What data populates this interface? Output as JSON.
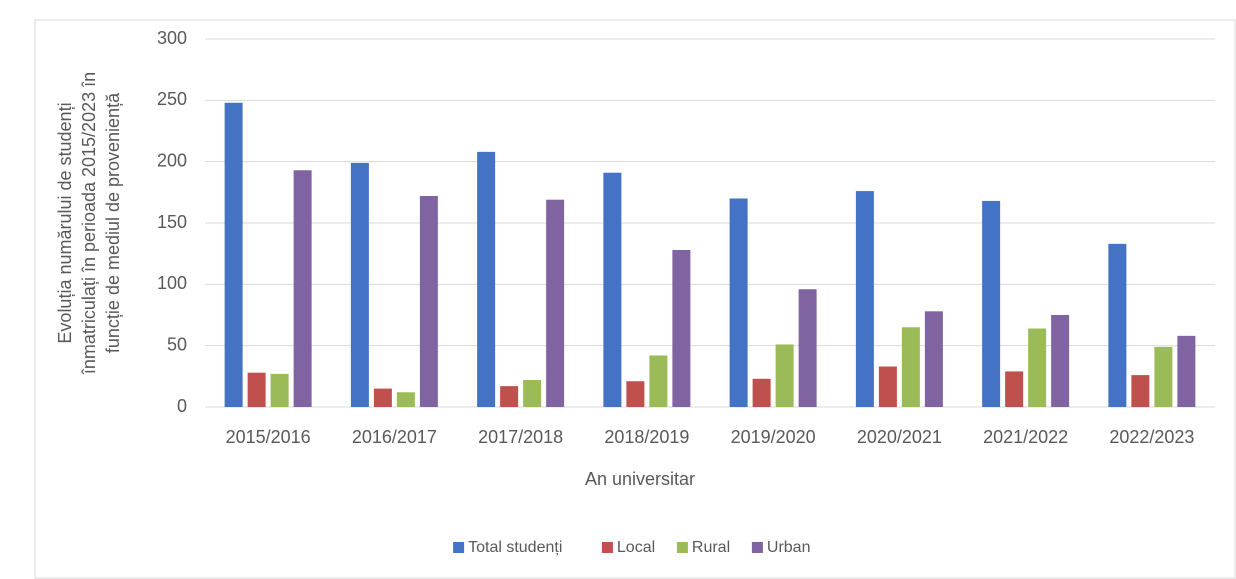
{
  "chart_data": {
    "type": "bar",
    "ylabel": [
      "Evoluția numărului de studenți",
      "înmatriculați în perioada 2015/2023 în",
      "funcție de mediul de proveniență"
    ],
    "xlabel": "An universitar",
    "categories": [
      "2015/2016",
      "2016/2017",
      "2017/2018",
      "2018/2019",
      "2019/2020",
      "2020/2021",
      "2021/2022",
      "2022/2023"
    ],
    "series": [
      {
        "name": "Total studenți",
        "color": "#4472c4",
        "values": [
          248,
          199,
          208,
          191,
          170,
          176,
          168,
          133
        ]
      },
      {
        "name": "Local",
        "color": "#c0504d",
        "values": [
          28,
          15,
          17,
          21,
          23,
          33,
          29,
          26
        ]
      },
      {
        "name": "Rural",
        "color": "#9bbb59",
        "values": [
          27,
          12,
          22,
          42,
          51,
          65,
          64,
          49
        ]
      },
      {
        "name": "Urban",
        "color": "#8064a2",
        "values": [
          193,
          172,
          169,
          128,
          96,
          78,
          75,
          58
        ]
      }
    ],
    "ylim": [
      0,
      300
    ],
    "yticks": [
      0,
      50,
      100,
      150,
      200,
      250,
      300
    ],
    "grid": true,
    "legend": "bottom"
  }
}
